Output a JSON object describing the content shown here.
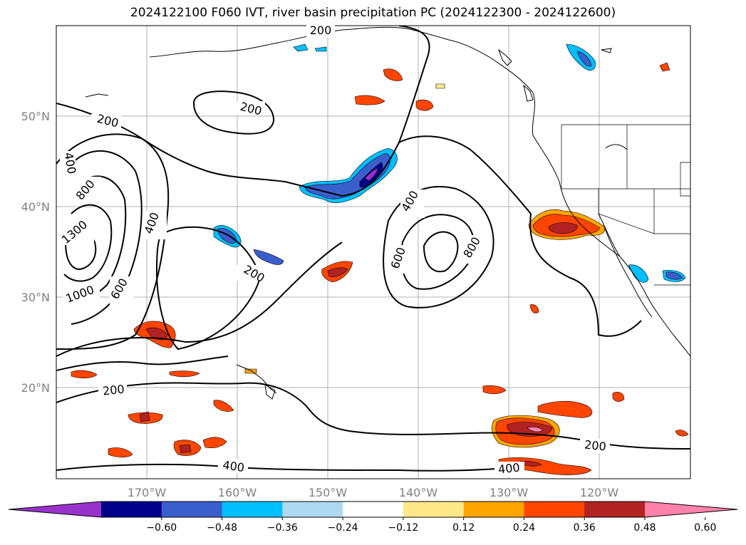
{
  "title": "2024122100 F060 IVT, river basin precipitation PC (2024122300 - 2024122600)",
  "lat_labels": [
    "50°N",
    "40°N",
    "30°N",
    "20°N"
  ],
  "lon_labels": [
    "170°W",
    "160°W",
    "150°W",
    "140°W",
    "130°W",
    "120°W"
  ],
  "contour_labels": [
    "200",
    "200",
    "200",
    "200",
    "200",
    "200",
    "400",
    "400",
    "400",
    "400",
    "400",
    "600",
    "600",
    "800",
    "800",
    "1000",
    "1300"
  ],
  "colorbar": {
    "ticks": [
      "−0.60",
      "−0.48",
      "−0.36",
      "−0.24",
      "−0.12",
      "0.12",
      "0.24",
      "0.36",
      "0.48",
      "0.60"
    ],
    "colors": [
      "#9932cc",
      "#00008b",
      "#3a5fcd",
      "#00bfff",
      "#add8f0",
      "#ffffff",
      "#ffe88a",
      "#ffa500",
      "#ff4500",
      "#b22222",
      "#ff82ab"
    ]
  }
}
